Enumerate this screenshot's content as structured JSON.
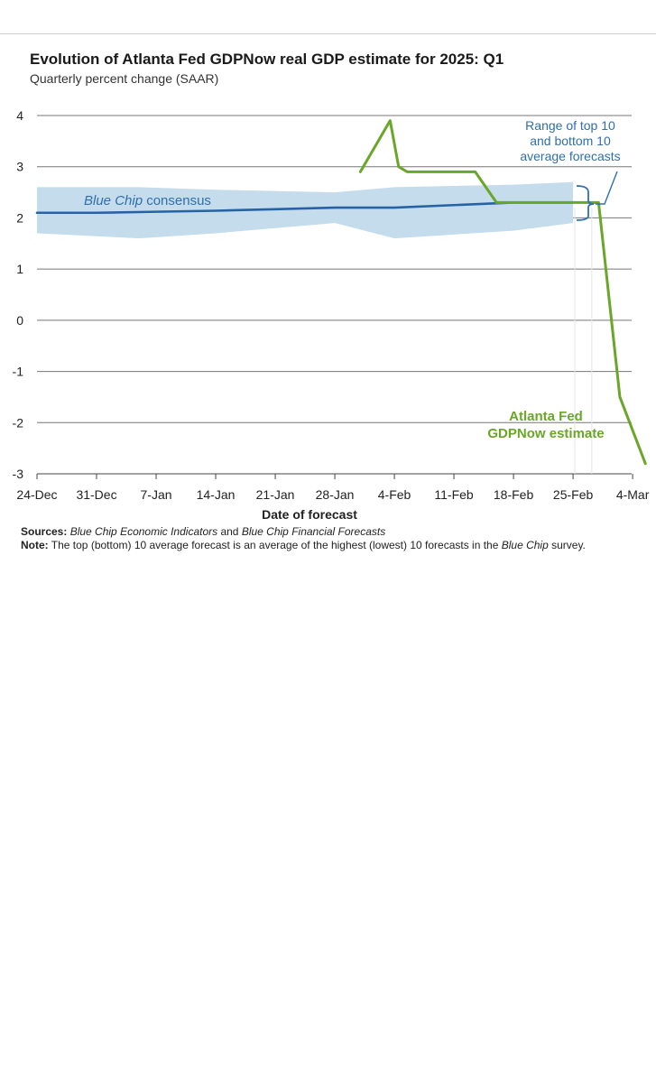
{
  "chart_data": {
    "type": "line",
    "title": "Evolution of Atlanta Fed GDPNow real GDP estimate for 2025: Q1",
    "subtitle": "Quarterly percent change (SAAR)",
    "xlabel": "Date of forecast",
    "ylabel": "",
    "ylim": [
      -3,
      4
    ],
    "yticks": [
      "4",
      "3",
      "2",
      "1",
      "0",
      "-1",
      "-2",
      "-3"
    ],
    "xticks": [
      "24-Dec",
      "31-Dec",
      "7-Jan",
      "14-Jan",
      "21-Jan",
      "28-Jan",
      "4-Feb",
      "11-Feb",
      "18-Feb",
      "25-Feb",
      "4-Mar"
    ],
    "x_unit": "days since 24-Dec",
    "band": {
      "name": "Range of top 10 and bottom 10 average forecasts",
      "x": [
        0,
        12,
        21,
        35,
        42,
        56,
        63
      ],
      "upper": [
        2.6,
        2.6,
        2.55,
        2.5,
        2.6,
        2.65,
        2.7
      ],
      "lower": [
        1.7,
        1.6,
        1.7,
        1.9,
        1.6,
        1.75,
        1.9
      ]
    },
    "series": [
      {
        "name": "Blue Chip consensus",
        "color": "#2563a6",
        "x": [
          0,
          7,
          14,
          21,
          28,
          35,
          42,
          49,
          56,
          63
        ],
        "values": [
          2.1,
          2.1,
          2.12,
          2.14,
          2.17,
          2.2,
          2.2,
          2.25,
          2.3,
          2.3
        ]
      },
      {
        "name": "Atlanta Fed GDPNow estimate",
        "color": "#6aa628",
        "x": [
          38,
          41.5,
          42.5,
          43.5,
          51.5,
          54,
          65,
          66,
          68.5,
          71.5
        ],
        "values": [
          2.9,
          3.9,
          3.0,
          2.9,
          2.9,
          2.3,
          2.3,
          2.3,
          -1.5,
          -2.8
        ]
      }
    ],
    "annotations": {
      "consensus_label_italic": "Blue Chip",
      "consensus_label_rest": " consensus",
      "range_label": [
        "Range of top 10",
        "and bottom 10",
        "average forecasts"
      ],
      "gdpnow_label": [
        "Atlanta Fed",
        "GDPNow estimate"
      ]
    }
  },
  "footer": {
    "sources_label": "Sources:",
    "sources_italic_1": "Blue Chip Economic Indicators",
    "sources_and": " and ",
    "sources_italic_2": "Blue Chip Financial Forecasts",
    "note_label": "Note:",
    "note_text": " The top (bottom) 10 average forecast is an average of the highest (lowest) 10 forecasts in the ",
    "note_italic": "Blue Chip",
    "note_end": " survey."
  },
  "colors": {
    "band": "#c5dced",
    "consensus": "#2563a6",
    "gdpnow": "#6aa628",
    "annotation_blue": "#2f6fac",
    "grid": "#777777"
  }
}
